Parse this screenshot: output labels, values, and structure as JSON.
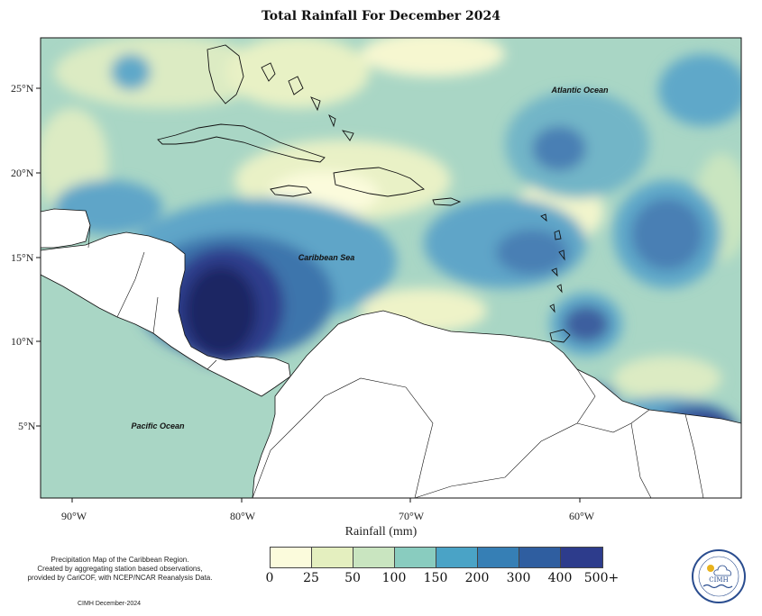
{
  "title": "Total Rainfall For December 2024",
  "map": {
    "lat_labels": [
      "25°N",
      "20°N",
      "15°N",
      "10°N",
      "5°N"
    ],
    "lon_labels": [
      "90°W",
      "80°W",
      "70°W",
      "60°W"
    ],
    "region_labels": {
      "atlantic": "Atlantic Ocean",
      "caribbean": "Caribbean Sea",
      "pacific": "Pacific Ocean"
    }
  },
  "legend": {
    "title": "Rainfall (mm)",
    "ticks": [
      "0",
      "25",
      "50",
      "100",
      "150",
      "200",
      "300",
      "400",
      "500+"
    ],
    "colors": [
      "#fbfbdc",
      "#e4efbf",
      "#c9e5c0",
      "#89ccbf",
      "#4aa3c6",
      "#367fb5",
      "#2f5ea0",
      "#2d3c8c",
      "#1a2563"
    ]
  },
  "credits": {
    "line1": "Precipitation Map of the Caribbean Region.",
    "line2": "Created by aggregating station based observations,",
    "line3": "provided by CariCOF, with NCEP/NCAR Reanalysis Data.",
    "stamp": "CIMH December-2024"
  },
  "logo": {
    "text": "CIMH"
  }
}
